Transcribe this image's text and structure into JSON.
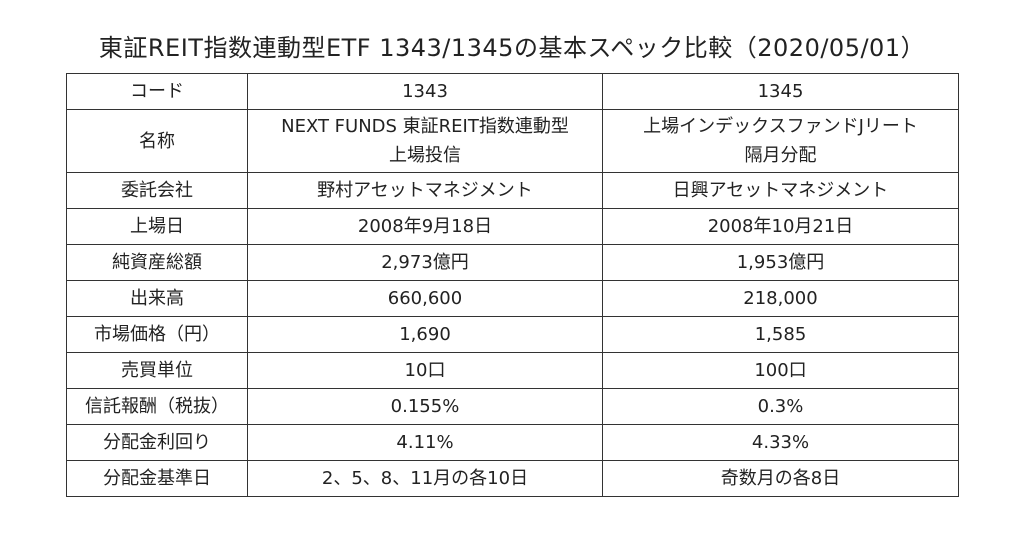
{
  "title": "東証REIT指数連動型ETF 1343/1345の基本スペック比較（2020/05/01）",
  "table": {
    "header": {
      "label": "コード",
      "a": "1343",
      "b": "1345"
    },
    "name_row": {
      "label": "名称",
      "a_line1": "NEXT FUNDS 東証REIT指数連動型",
      "a_line2": "上場投信",
      "b_line1": "上場インデックスファンドJリート",
      "b_line2": "隔月分配"
    },
    "rows": [
      {
        "label": "委託会社",
        "a": "野村アセットマネジメント",
        "b": "日興アセットマネジメント"
      },
      {
        "label": "上場日",
        "a": "2008年9月18日",
        "b": "2008年10月21日"
      },
      {
        "label": "純資産総額",
        "a": "2,973億円",
        "b": "1,953億円"
      },
      {
        "label": "出来高",
        "a": "660,600",
        "b": "218,000"
      },
      {
        "label": "市場価格（円）",
        "a": "1,690",
        "b": "1,585"
      },
      {
        "label": "売買単位",
        "a": "10口",
        "b": "100口"
      },
      {
        "label": "信託報酬（税抜）",
        "a": "0.155%",
        "b": "0.3%"
      },
      {
        "label": "分配金利回り",
        "a": "4.11%",
        "b": "4.33%"
      },
      {
        "label": "分配金基準日",
        "a": "2、5、8、11月の各10日",
        "b": "奇数月の各8日"
      }
    ]
  }
}
